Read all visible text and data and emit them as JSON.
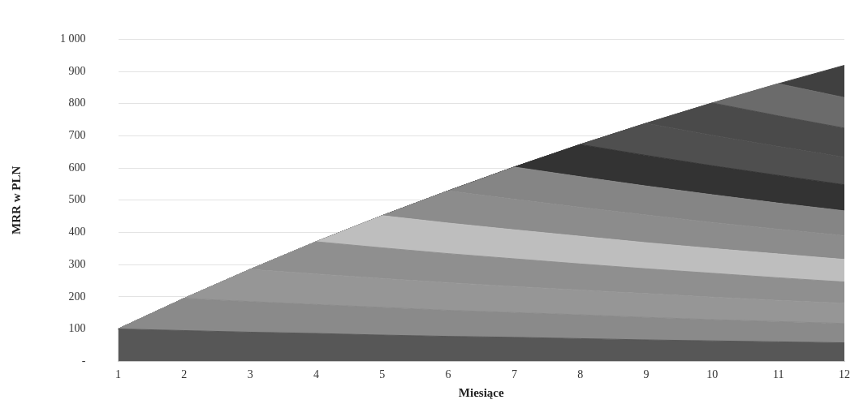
{
  "chart_data": {
    "type": "area",
    "stacked": true,
    "xlabel": "Miesiące",
    "ylabel": "MRR w PLN",
    "x": [
      1,
      2,
      3,
      4,
      5,
      6,
      7,
      8,
      9,
      10,
      11,
      12
    ],
    "xlim": [
      1,
      12
    ],
    "xticks": [
      1,
      2,
      3,
      4,
      5,
      6,
      7,
      8,
      9,
      10,
      11,
      12
    ],
    "ylim": [
      0,
      1000
    ],
    "yticks": [
      {
        "value": 0,
        "label": "-"
      },
      100,
      200,
      300,
      400,
      500,
      600,
      700,
      800,
      900,
      {
        "value": 1000,
        "label": "1 000"
      }
    ],
    "grid": "y",
    "series": [
      {
        "color": "#575757",
        "values": [
          100,
          95,
          90,
          86,
          81,
          77,
          74,
          70,
          66,
          63,
          60,
          57
        ]
      },
      {
        "color": "#8a8a8a",
        "values": [
          0,
          100,
          95,
          90,
          86,
          81,
          77,
          74,
          70,
          66,
          63,
          60
        ]
      },
      {
        "color": "#969696",
        "values": [
          0,
          0,
          100,
          95,
          90,
          86,
          81,
          77,
          74,
          70,
          66,
          63
        ]
      },
      {
        "color": "#8f8f8f",
        "values": [
          0,
          0,
          0,
          100,
          95,
          90,
          86,
          81,
          77,
          74,
          70,
          66
        ]
      },
      {
        "color": "#bebebe",
        "values": [
          0,
          0,
          0,
          0,
          100,
          95,
          90,
          86,
          81,
          77,
          74,
          70
        ]
      },
      {
        "color": "#8c8c8c",
        "values": [
          0,
          0,
          0,
          0,
          0,
          100,
          95,
          90,
          86,
          81,
          77,
          74
        ]
      },
      {
        "color": "#858585",
        "values": [
          0,
          0,
          0,
          0,
          0,
          0,
          100,
          95,
          90,
          86,
          81,
          77
        ]
      },
      {
        "color": "#333333",
        "values": [
          0,
          0,
          0,
          0,
          0,
          0,
          0,
          100,
          95,
          90,
          86,
          81
        ]
      },
      {
        "color": "#4f4f4f",
        "values": [
          0,
          0,
          0,
          0,
          0,
          0,
          0,
          0,
          100,
          95,
          90,
          86
        ]
      },
      {
        "color": "#4a4a4a",
        "values": [
          0,
          0,
          0,
          0,
          0,
          0,
          0,
          0,
          0,
          100,
          95,
          90
        ]
      },
      {
        "color": "#6b6b6b",
        "values": [
          0,
          0,
          0,
          0,
          0,
          0,
          0,
          0,
          0,
          0,
          100,
          95
        ]
      },
      {
        "color": "#404040",
        "values": [
          0,
          0,
          0,
          0,
          0,
          0,
          0,
          0,
          0,
          0,
          0,
          100
        ]
      }
    ]
  }
}
